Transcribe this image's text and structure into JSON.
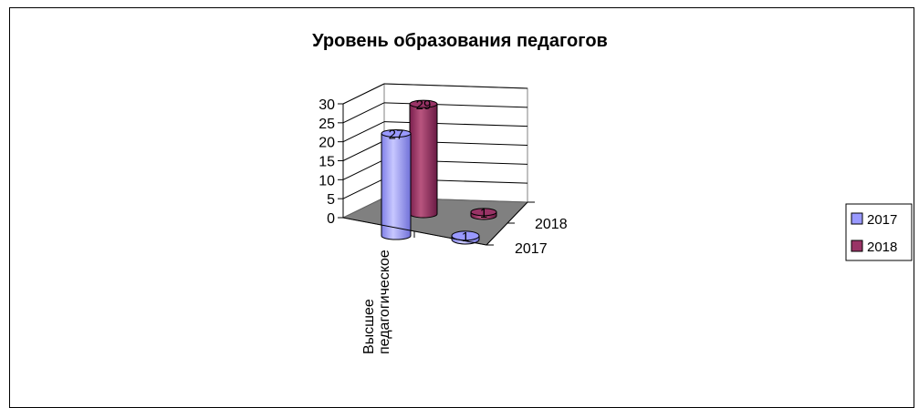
{
  "chart_data": {
    "type": "bar",
    "title": "Уровень образования педагогов",
    "categories": [
      "Высшее педагогическое",
      ""
    ],
    "depth_labels": [
      "2017",
      "2018"
    ],
    "series": [
      {
        "name": "2017",
        "values": [
          27,
          1
        ],
        "color": "#9999FF"
      },
      {
        "name": "2018",
        "values": [
          29,
          1
        ],
        "color": "#993366"
      }
    ],
    "yticks": [
      "0",
      "5",
      "10",
      "15",
      "20",
      "25",
      "30"
    ],
    "ylim": [
      0,
      30
    ],
    "grid": true,
    "legend": "right",
    "shape": "cylinder-3d",
    "category_label_lines": [
      "Высшее",
      "педагогическое"
    ]
  }
}
